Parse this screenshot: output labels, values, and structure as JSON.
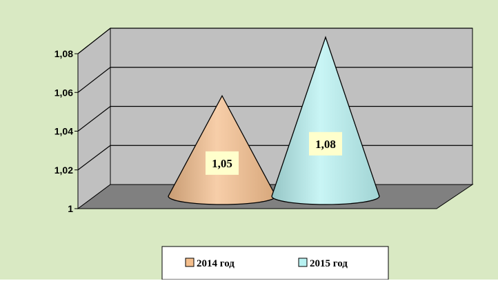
{
  "chart_data": {
    "type": "bar",
    "categories": [
      ""
    ],
    "series": [
      {
        "name": "2014 год",
        "values": [
          1.05
        ],
        "color": "#F4BE8C",
        "data_label": "1,05"
      },
      {
        "name": "2015 год",
        "values": [
          1.08
        ],
        "color": "#B7F1F1",
        "data_label": "1,08"
      }
    ],
    "title": "",
    "xlabel": "",
    "ylabel": "",
    "ylim": [
      1,
      1.08
    ],
    "yticks": [
      1,
      1.02,
      1.04,
      1.06,
      1.08
    ],
    "ytick_labels": [
      "1",
      "1,02",
      "1,04",
      "1,06",
      "1,08"
    ],
    "bar_shape": "cone",
    "grid": true,
    "legend_position": "bottom",
    "colors": {
      "background": "#D9E9C3",
      "back_wall": "#C0C0C0",
      "floor": "#808080",
      "legend_background": "#FFFFFF",
      "data_label_background": "#FFFFCC"
    }
  }
}
